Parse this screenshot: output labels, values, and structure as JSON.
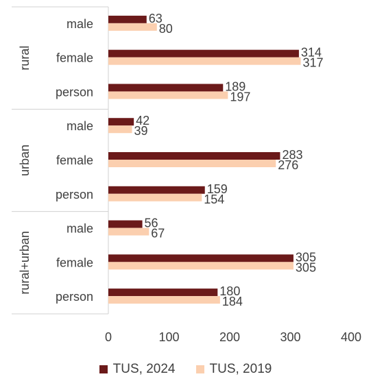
{
  "chart_data": {
    "type": "bar",
    "orientation": "horizontal",
    "groups": [
      {
        "name": "rural",
        "categories": [
          "male",
          "female",
          "person"
        ]
      },
      {
        "name": "urban",
        "categories": [
          "male",
          "female",
          "person"
        ]
      },
      {
        "name": "rural+urban",
        "categories": [
          "male",
          "female",
          "person"
        ]
      }
    ],
    "series": [
      {
        "name": "TUS, 2024",
        "color": "#6b1a1a",
        "values": [
          63,
          314,
          189,
          42,
          283,
          159,
          56,
          305,
          180
        ]
      },
      {
        "name": "TUS, 2019",
        "color": "#fbcfaf",
        "values": [
          80,
          317,
          197,
          39,
          276,
          154,
          67,
          305,
          184
        ]
      }
    ],
    "xlim": [
      0,
      400
    ],
    "xticks": [
      0,
      100,
      200,
      300,
      400
    ],
    "grid": false,
    "legend_position": "bottom",
    "title": "",
    "xlabel": "",
    "ylabel": ""
  }
}
